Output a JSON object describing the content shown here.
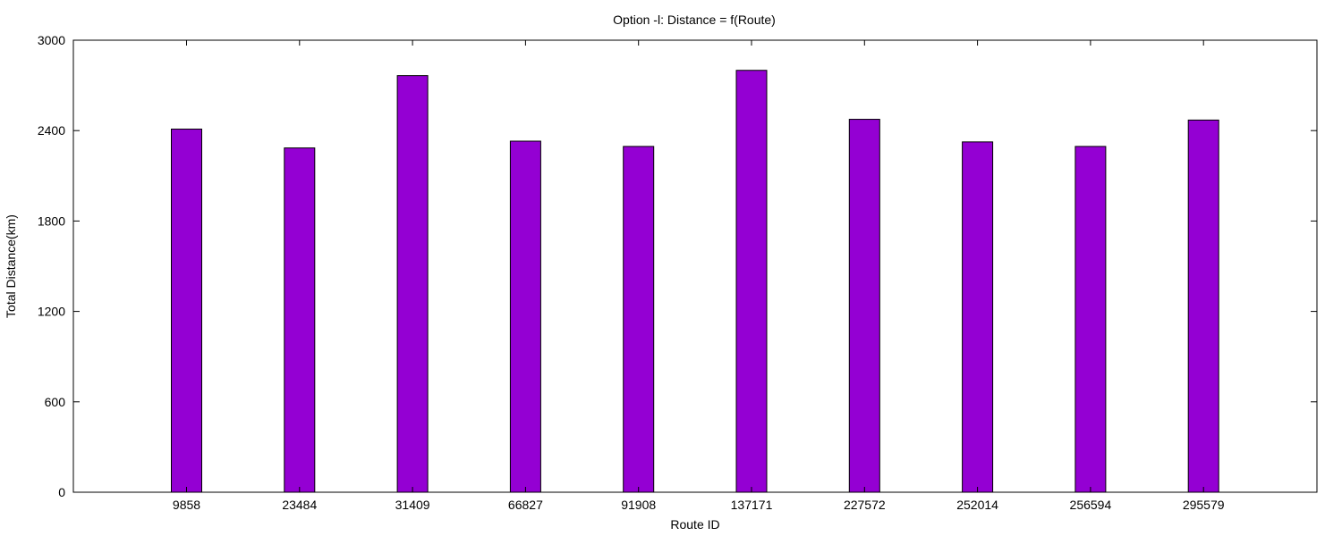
{
  "chart_data": {
    "type": "bar",
    "title": "Option -l: Distance = f(Route)",
    "xlabel": "Route ID",
    "ylabel": "Total Distance(km)",
    "categories": [
      "9858",
      "23484",
      "31409",
      "66827",
      "91908",
      "137171",
      "227572",
      "252014",
      "256594",
      "295579"
    ],
    "values": [
      2410,
      2285,
      2765,
      2330,
      2295,
      2800,
      2475,
      2325,
      2295,
      2470
    ],
    "ylim": [
      0,
      3000
    ],
    "yticks": [
      0,
      600,
      1200,
      1800,
      2400,
      3000
    ],
    "grid": false,
    "legend": "none",
    "bar_color": "#9400d3"
  }
}
